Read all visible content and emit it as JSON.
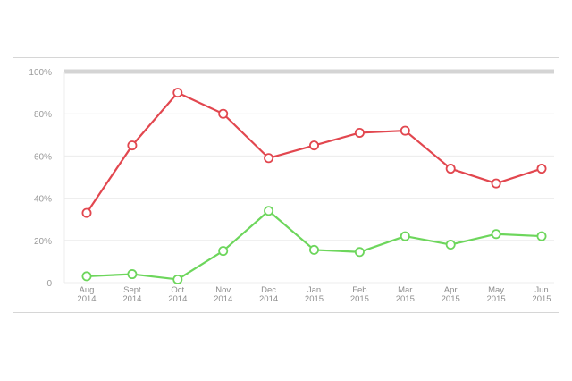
{
  "chart_data": {
    "type": "line",
    "title": "",
    "xlabel": "",
    "ylabel": "",
    "categories": [
      [
        "Aug",
        "2014"
      ],
      [
        "Sept",
        "2014"
      ],
      [
        "Oct",
        "2014"
      ],
      [
        "Nov",
        "2014"
      ],
      [
        "Dec",
        "2014"
      ],
      [
        "Jan",
        "2015"
      ],
      [
        "Feb",
        "2015"
      ],
      [
        "Mar",
        "2015"
      ],
      [
        "Apr",
        "2015"
      ],
      [
        "May",
        "2015"
      ],
      [
        "Jun",
        "2015"
      ]
    ],
    "yticks": [
      {
        "value": 0,
        "label": "0"
      },
      {
        "value": 20,
        "label": "20%"
      },
      {
        "value": 40,
        "label": "40%"
      },
      {
        "value": 60,
        "label": "60%"
      },
      {
        "value": 80,
        "label": "80%"
      },
      {
        "value": 100,
        "label": "100%"
      }
    ],
    "ylim": [
      0,
      100
    ],
    "grid": true,
    "series": [
      {
        "color": "#e2474f",
        "values": [
          33,
          65,
          90,
          80,
          59,
          65,
          71,
          72,
          54,
          47,
          54
        ]
      },
      {
        "color": "#6dd65c",
        "values": [
          3,
          4,
          1.5,
          15,
          34,
          15.5,
          14.5,
          22,
          18,
          23,
          22
        ]
      }
    ],
    "reference_line": {
      "value": 100,
      "color": "#d4d4d4"
    }
  }
}
